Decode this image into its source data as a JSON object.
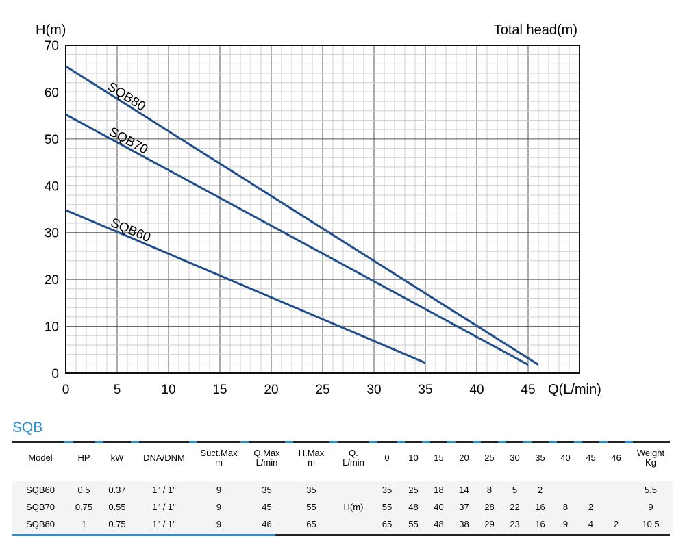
{
  "chart_data": {
    "type": "line",
    "ylabel": "H(m)",
    "top_right_label": "Total head(m)",
    "xlabel": "Q(L/min)",
    "xlim": [
      0,
      50
    ],
    "ylim": [
      0,
      70
    ],
    "x_ticks": [
      0,
      5,
      10,
      15,
      20,
      25,
      30,
      35,
      40,
      45
    ],
    "y_ticks": [
      0,
      10,
      20,
      30,
      40,
      50,
      60,
      70
    ],
    "grid": true,
    "series": [
      {
        "name": "SQB80",
        "points": [
          [
            0,
            65.5
          ],
          [
            46,
            1.8
          ]
        ],
        "color": "#1f4e8c"
      },
      {
        "name": "SQB70",
        "points": [
          [
            0,
            55.2
          ],
          [
            45,
            1.8
          ]
        ],
        "color": "#1f4e8c"
      },
      {
        "name": "SQB60",
        "points": [
          [
            0,
            34.8
          ],
          [
            35,
            2.2
          ]
        ],
        "color": "#1f4e8c"
      }
    ]
  },
  "section_title": "SQB",
  "table": {
    "headers": [
      "Model",
      "HP",
      "kW",
      "DNA/DNM",
      "Suct.Max\nm",
      "Q.Max\nL/min",
      "H.Max\nm",
      "Q.\nL/min",
      "0",
      "10",
      "15",
      "20",
      "25",
      "30",
      "35",
      "40",
      "45",
      "46",
      "Weight\nKg"
    ],
    "h_label": "H(m)",
    "rows": [
      [
        "SQB60",
        "0.5",
        "0.37",
        "1\" / 1\"",
        "9",
        "35",
        "35",
        "",
        "35",
        "25",
        "18",
        "14",
        "8",
        "5",
        "2",
        "",
        "",
        "",
        "5.5"
      ],
      [
        "SQB70",
        "0.75",
        "0.55",
        "1\" / 1\"",
        "9",
        "45",
        "55",
        "H(m)",
        "55",
        "48",
        "40",
        "37",
        "28",
        "22",
        "16",
        "8",
        "2",
        "",
        "9"
      ],
      [
        "SQB80",
        "1",
        "0.75",
        "1\" / 1\"",
        "9",
        "46",
        "65",
        "",
        "65",
        "55",
        "48",
        "38",
        "29",
        "23",
        "16",
        "9",
        "4",
        "2",
        "10.5"
      ]
    ]
  }
}
